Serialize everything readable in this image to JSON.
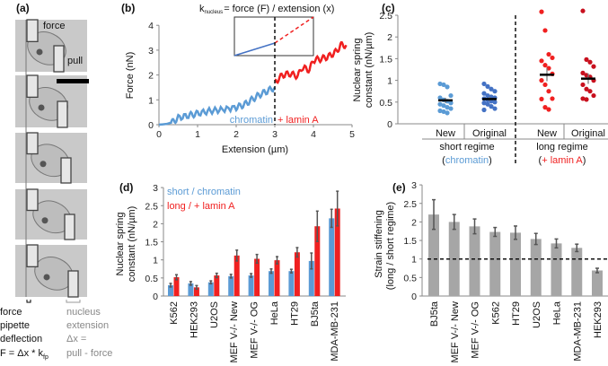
{
  "colors": {
    "blue": "#5b9bd5",
    "blue_dark": "#4472c4",
    "red": "#f02020",
    "red_dark": "#c8101e",
    "gray_bar": "#a6a6a6",
    "err": "#555555"
  },
  "panel_a": {
    "label": "(a)",
    "image_labels": {
      "force": "force",
      "pull": "pull"
    },
    "left_caption": [
      "force",
      "pipette",
      "deflection"
    ],
    "formula": {
      "main": "F = Δx * k",
      "sub": "fp"
    },
    "right_caption": [
      "nucleus",
      "extension",
      "Δx =",
      "pull - force"
    ]
  },
  "chart_data": [
    {
      "panel": "(b)",
      "type": "line",
      "title": {
        "k": "k",
        "sub": "nucleus",
        "rest": "= force (F) / extension (x)"
      },
      "xlabel": "Extension (µm)",
      "ylabel": "Force (nN)",
      "xlim": [
        0,
        5
      ],
      "ylim": [
        0,
        4
      ],
      "xticks": [
        "0",
        "1",
        "2",
        "3",
        "4",
        "5"
      ],
      "yticks": [
        "0",
        "1",
        "2",
        "3",
        "4"
      ],
      "threshold_x": 3,
      "series": [
        {
          "name": "chromatin",
          "color": "#5b9bd5",
          "x": [
            0,
            0.2,
            0.35,
            0.5,
            0.8,
            1.0,
            1.3,
            1.6,
            2.0,
            2.2,
            2.4,
            2.6,
            2.8,
            3.0
          ],
          "y": [
            0,
            0.03,
            0.1,
            0.28,
            0.38,
            0.45,
            0.55,
            0.6,
            0.7,
            0.8,
            1.0,
            1.2,
            1.35,
            1.5
          ]
        },
        {
          "name": "+ lamin A",
          "color": "#f02020",
          "x": [
            3.0,
            3.2,
            3.4,
            3.6,
            3.7,
            3.9,
            4.0,
            4.2,
            4.4,
            4.6,
            4.7,
            4.85
          ],
          "y": [
            1.7,
            2.0,
            2.05,
            1.95,
            2.3,
            2.2,
            2.6,
            2.65,
            2.75,
            2.95,
            3.2,
            3.2
          ]
        }
      ]
    },
    {
      "panel": "(c)",
      "type": "scatter",
      "ylabel": [
        "Nuclear spring",
        "constant (nN/µm)"
      ],
      "ylim": [
        0,
        2.5
      ],
      "yticks": [
        "0",
        "0.5",
        "1",
        "1.5",
        "2",
        "2.5"
      ],
      "groups": [
        {
          "category": "New",
          "regime": "short",
          "color": "#5b9bd5",
          "mean": 0.54,
          "sem": 0.06,
          "values": [
            0.92,
            0.9,
            0.85,
            0.65,
            0.6,
            0.55,
            0.52,
            0.48,
            0.45,
            0.42,
            0.38,
            0.35,
            0.3,
            0.28,
            0.25
          ]
        },
        {
          "category": "Original",
          "regime": "short",
          "color": "#4472c4",
          "mean": 0.57,
          "sem": 0.05,
          "values": [
            0.92,
            0.86,
            0.8,
            0.75,
            0.7,
            0.65,
            0.62,
            0.6,
            0.58,
            0.55,
            0.52,
            0.5,
            0.48,
            0.45,
            0.4,
            0.35,
            0.32
          ]
        },
        {
          "category": "New",
          "regime": "long",
          "color": "#f02020",
          "mean": 1.13,
          "sem": 0.15,
          "values": [
            2.58,
            2.15,
            1.6,
            1.52,
            1.45,
            1.35,
            1.28,
            1.15,
            1.0,
            0.9,
            0.75,
            0.58,
            0.57,
            0.38,
            0.33
          ]
        },
        {
          "category": "Original",
          "regime": "long",
          "color": "#c8101e",
          "mean": 1.04,
          "sem": 0.12,
          "values": [
            2.6,
            1.48,
            1.42,
            1.32,
            1.17,
            1.12,
            1.08,
            1.0,
            0.9,
            0.8,
            0.75,
            0.65,
            0.58,
            0.56
          ]
        }
      ],
      "regime_labels": [
        {
          "title": "short regime",
          "sub": "chromatin",
          "open": "(",
          "close": ")",
          "color": "#5b9bd5"
        },
        {
          "title": "long regime",
          "sub": "+ lamin A",
          "open": "(",
          "close": ")",
          "color": "#f02020"
        }
      ]
    },
    {
      "panel": "(d)",
      "type": "bar",
      "ylabel": [
        "Nuclear spring",
        "constant (nN/µm)"
      ],
      "ylim": [
        0,
        3
      ],
      "yticks": [
        "0",
        "0.5",
        "1",
        "1.5",
        "2",
        "2.5",
        "3"
      ],
      "categories": [
        "K562",
        "HEK293",
        "U2OS",
        "MEF V-/- New",
        "MEF V-/- OG",
        "HeLa",
        "HT29",
        "BJ5ta",
        "MDA-MB-231"
      ],
      "series": [
        {
          "name": "short / chromatin",
          "color": "#5b9bd5",
          "values": [
            0.3,
            0.35,
            0.38,
            0.55,
            0.57,
            0.69,
            0.69,
            0.97,
            2.15
          ],
          "err": [
            0.05,
            0.05,
            0.04,
            0.05,
            0.05,
            0.06,
            0.05,
            0.22,
            0.25
          ]
        },
        {
          "name": "long / + lamin A",
          "color": "#f02020",
          "values": [
            0.52,
            0.24,
            0.57,
            1.12,
            1.03,
            0.99,
            1.21,
            1.93,
            2.42
          ],
          "err": [
            0.07,
            0.05,
            0.06,
            0.15,
            0.12,
            0.1,
            0.13,
            0.42,
            0.48
          ]
        }
      ],
      "legend": "top-left"
    },
    {
      "panel": "(e)",
      "type": "bar",
      "ylabel": [
        "Strain stiffening",
        "(long / short regime)"
      ],
      "ylim": [
        0,
        3
      ],
      "yticks": [
        "0",
        "0.5",
        "1",
        "1.5",
        "2",
        "2.5",
        "3"
      ],
      "reference_y": 1,
      "categories": [
        "BJ5ta",
        "MEF V-/- New",
        "MEF V-/- OG",
        "K562",
        "HT29",
        "U2OS",
        "HeLa",
        "MDA-MB-231",
        "HEK293"
      ],
      "values": [
        2.2,
        2.0,
        1.88,
        1.73,
        1.71,
        1.54,
        1.42,
        1.3,
        0.69
      ],
      "err": [
        0.4,
        0.2,
        0.2,
        0.12,
        0.18,
        0.15,
        0.12,
        0.1,
        0.06
      ]
    }
  ]
}
